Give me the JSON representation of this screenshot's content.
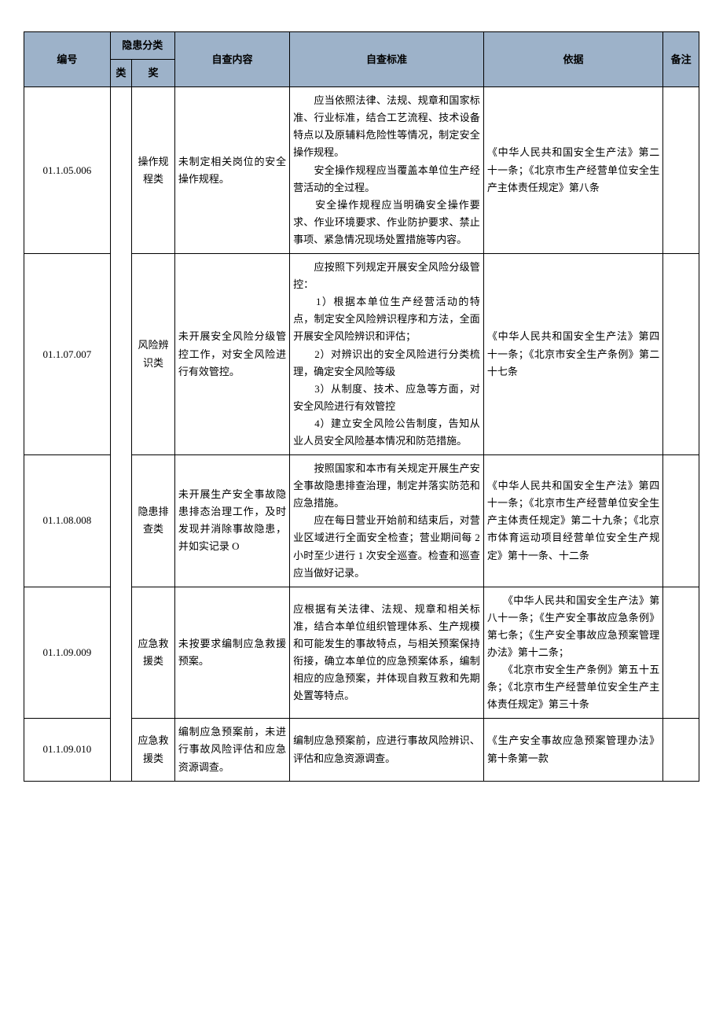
{
  "header": {
    "col_id": "编号",
    "col_hazard_group": "隐患分类",
    "col_cat1": "类",
    "col_cat2": "奖",
    "col_content": "自查内容",
    "col_standard": "自查标准",
    "col_basis": "依据",
    "col_note": "备注"
  },
  "rows": [
    {
      "id": "01.1.05.006",
      "cat1": "",
      "cat2": "操作规程类",
      "content": "未制定相关岗位的安全操作规程。",
      "standard": "　　应当依照法律、法规、规章和国家标准、行业标准，结合工艺流程、技术设备特点以及原辅料危险性等情况，制定安全操作规程。\n　　安全操作规程应当覆盖本单位生产经营活动的全过程。\n　　安全操作规程应当明确安全操作要求、作业环境要求、作业防护要求、禁止事项、紧急情况现场处置措施等内容。",
      "basis": "《中华人民共和国安全生产法》第二十一条；《北京市生产经营单位安全生产主体责任规定》第八条",
      "note": ""
    },
    {
      "id": "01.1.07.007",
      "cat1": "",
      "cat2": "风险辨识类",
      "content": "未开展安全风险分级管控工作，对安全风险进行有效管控。",
      "standard": "　　应按照下列规定开展安全风险分级管控：\n　　1）根据本单位生产经营活动的特点，制定安全风险辨识程序和方法，全面开展安全风险辨识和评估；\n　　2）对辨识出的安全风险进行分类梳理，确定安全风险等级\n　　3）从制度、技术、应急等方面，对安全风险进行有效管控\n　　4）建立安全风险公告制度，告知从业人员安全风险基本情况和防范措施。",
      "basis": "《中华人民共和国安全生产法》第四十一条；《北京市安全生产条例》第二十七条",
      "note": ""
    },
    {
      "id": "01.1.08.008",
      "cat1": "",
      "cat2": "隐患排查类",
      "content": "未开展生产安全事故隐患排态治理工作，及时发现并消除事故隐患，并如实记录 O",
      "standard": "　　按照国家和本市有关规定开展生产安全事故隐患排查治理，制定并落实防范和应急措施。\n　　应在每日营业开始前和结束后，对营业区域进行全面安全检查；营业期间每 2 小时至少进行 1 次安全巡查。检查和巡查应当做好记录。",
      "basis": "《中华人民共和国安全生产法》第四十一条；《北京市生产经营单位安全生产主体责任规定》第二十九条；《北京市体育运动项目经营单位安全生产规定》第十一条、十二条",
      "note": ""
    },
    {
      "id": "01.1.09.009",
      "cat1": "",
      "cat2": "应急救援类",
      "content": "未按要求编制应急救援预案。",
      "standard": "应根据有关法律、法规、规章和相关标准，结合本单位组织管理体系、生产规模和可能发生的事故特点，与相关预案保持衔接，确立本单位的应急预案体系，编制相应的应急预案，并体现自救互救和先期处置等特点。",
      "basis": "　　《中华人民共和国安全生产法》第八十一条；《生产安全事故应急条例》第七条；《生产安全事故应急预案管理办法》第十二条；\n　　《北京市安全生产条例》第五十五条；《北京市生产经营单位安全生产主体责任规定》第三十条",
      "note": ""
    },
    {
      "id": "01.1.09.010",
      "cat1": "",
      "cat2": "应急救援类",
      "content": "编制应急预案前，未进行事故风险评估和应急资源调查。",
      "standard": "编制应急预案前，应进行事故风险辨识、评估和应急资源调查。",
      "basis": "《生产安全事故应急预案管理办法》第十条第一款",
      "note": ""
    }
  ]
}
